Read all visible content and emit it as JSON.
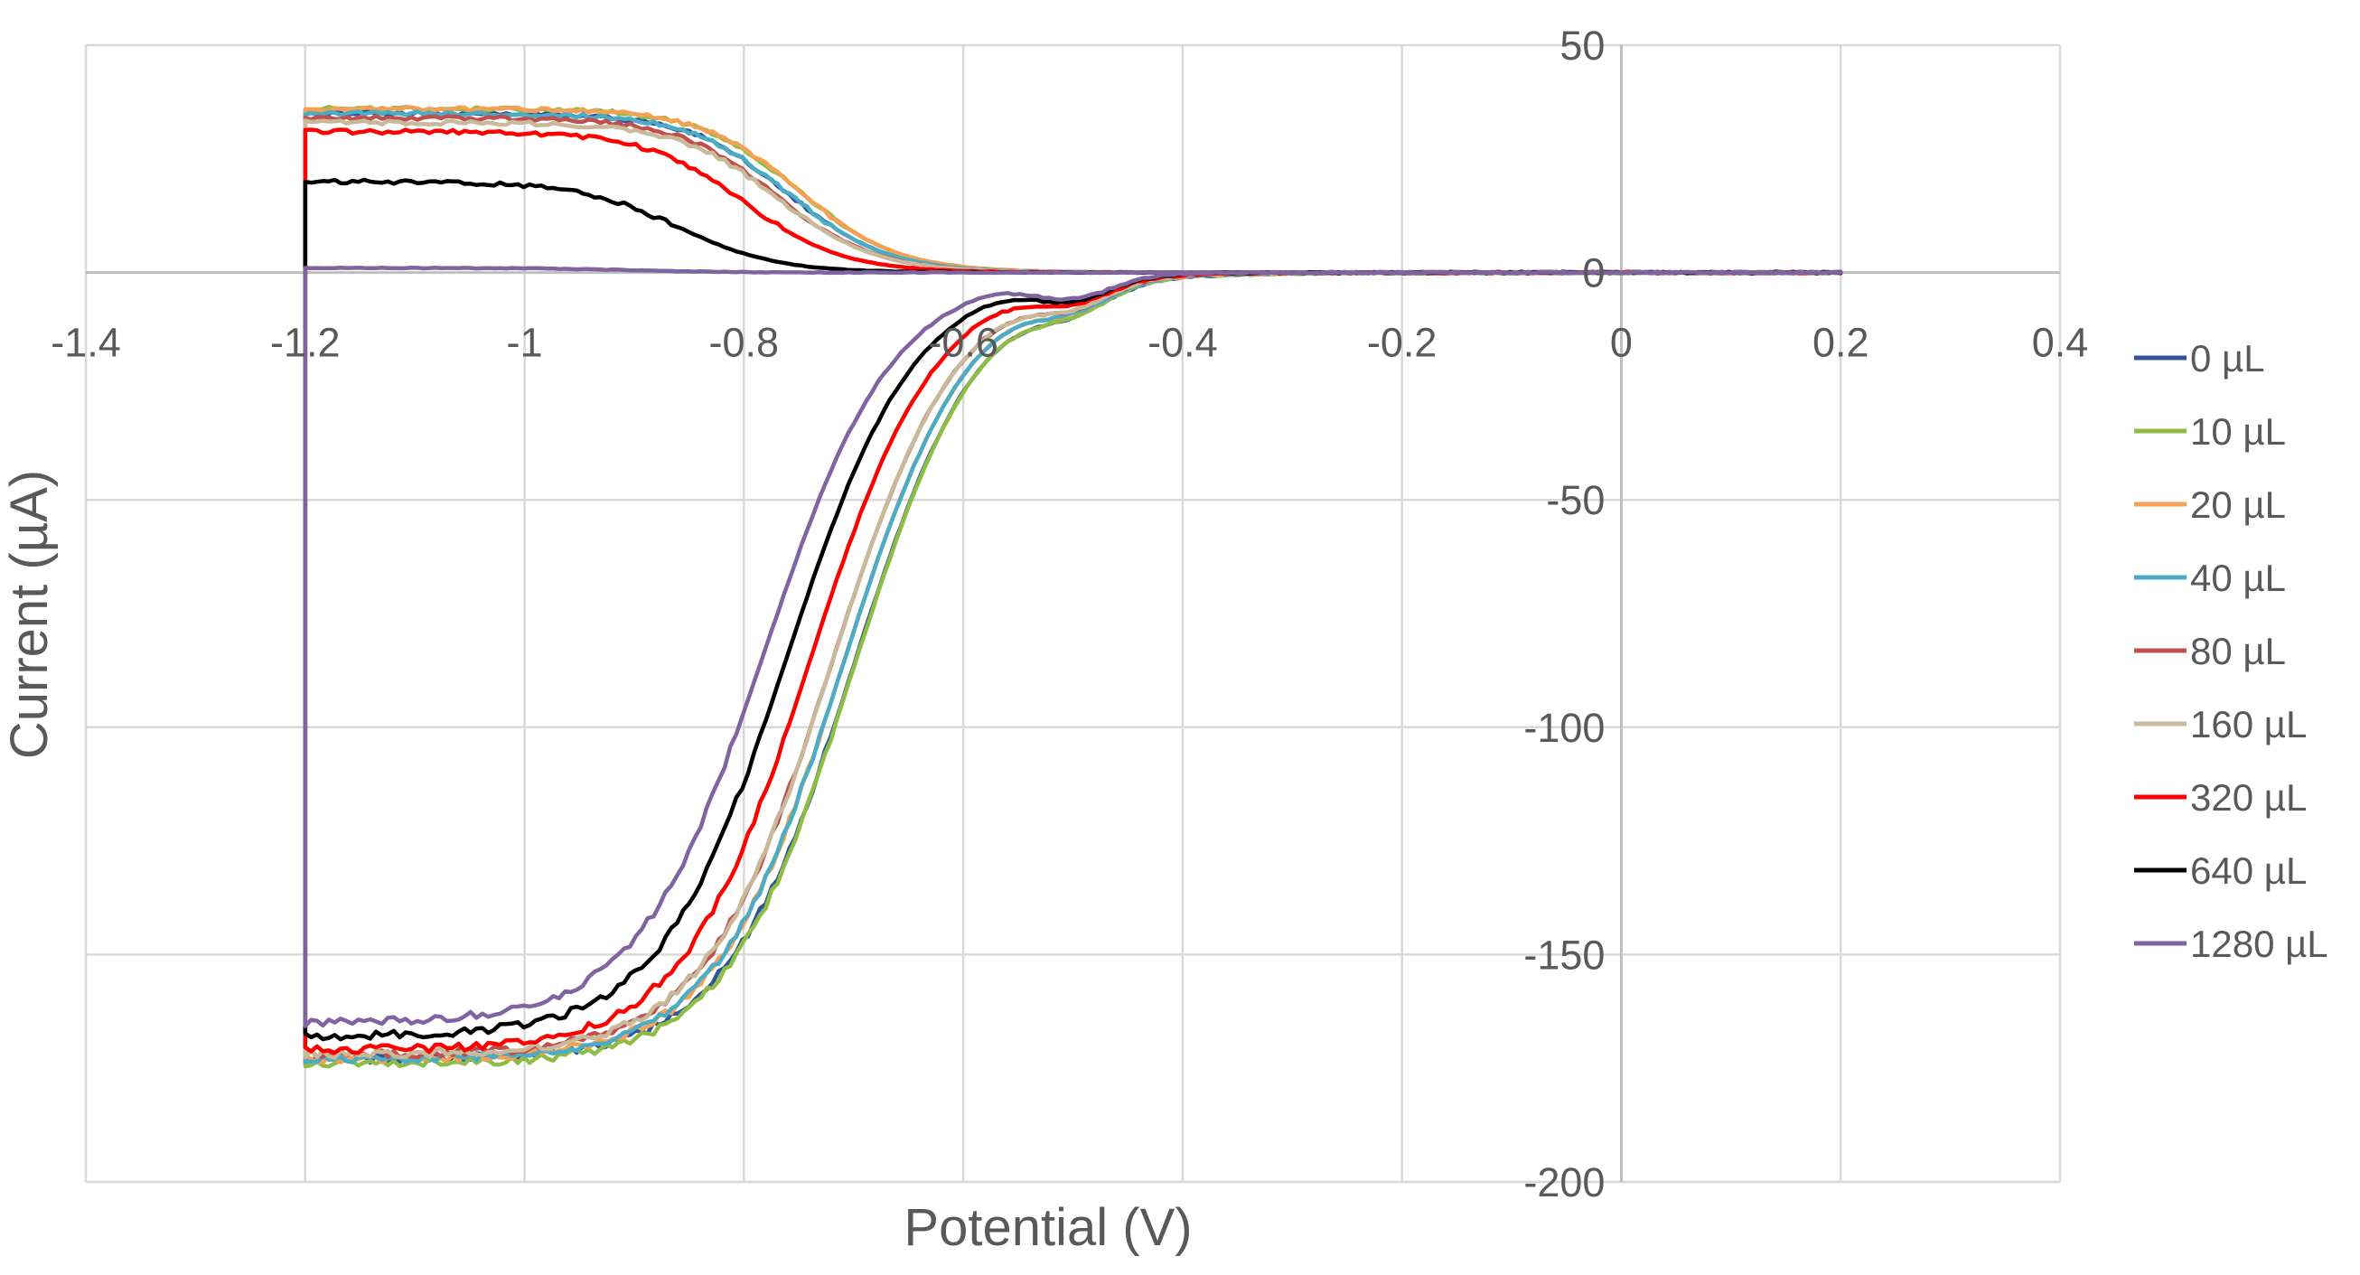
{
  "chart_data": {
    "type": "line",
    "title": "",
    "xlabel": "Potential (V)",
    "ylabel": "Current (µA)",
    "xlim": [
      -1.4,
      0.4
    ],
    "ylim": [
      -200,
      50
    ],
    "xticks": [
      -1.4,
      -1.2,
      -1,
      -0.8,
      -0.6,
      -0.4,
      -0.2,
      0,
      0.2,
      0.4
    ],
    "xtick_labels": [
      "-1.4",
      "-1.2",
      "-1",
      "-0.8",
      "-0.6",
      "-0.4",
      "-0.2",
      "0",
      "0.2",
      "0.4"
    ],
    "yticks": [
      50,
      0,
      -50,
      -100,
      -150,
      -200
    ],
    "ytick_labels": [
      "50",
      "0",
      "-50",
      "-100",
      "-150",
      "-200"
    ],
    "grid": true,
    "legend_position": "right",
    "curve_model": "cyclic voltammogram; each series sweeps forward 0.2 V to -1.2 V (cathodic branch, reaching the cathodic plateau current) and reverse -1.2 V to 0.2 V (anodic branch, reaching the anodic plateau current)",
    "series": [
      {
        "name": "0 µL",
        "color": "#2f5597",
        "cathodic_plateau_uA": -173,
        "cathodic_half_wave_V": -0.7,
        "anodic_plateau_uA": 35,
        "anodic_half_wave_V": -0.76
      },
      {
        "name": "10 µL",
        "color": "#8fbc45",
        "cathodic_plateau_uA": -174,
        "cathodic_half_wave_V": -0.7,
        "anodic_plateau_uA": 36,
        "anodic_half_wave_V": -0.75
      },
      {
        "name": "20 µL",
        "color": "#f4a155",
        "cathodic_plateau_uA": -173,
        "cathodic_half_wave_V": -0.71,
        "anodic_plateau_uA": 36,
        "anodic_half_wave_V": -0.75
      },
      {
        "name": "40 µL",
        "color": "#4bacc6",
        "cathodic_plateau_uA": -173,
        "cathodic_half_wave_V": -0.71,
        "anodic_plateau_uA": 35,
        "anodic_half_wave_V": -0.76
      },
      {
        "name": "80 µL",
        "color": "#c0504d",
        "cathodic_plateau_uA": -172,
        "cathodic_half_wave_V": -0.72,
        "anodic_plateau_uA": 34,
        "anodic_half_wave_V": -0.77
      },
      {
        "name": "160 µL",
        "color": "#c9b99b",
        "cathodic_plateau_uA": -172,
        "cathodic_half_wave_V": -0.72,
        "anodic_plateau_uA": 33,
        "anodic_half_wave_V": -0.77
      },
      {
        "name": "320 µL",
        "color": "#ff0000",
        "cathodic_plateau_uA": -171,
        "cathodic_half_wave_V": -0.74,
        "anodic_plateau_uA": 31,
        "anodic_half_wave_V": -0.8
      },
      {
        "name": "640 µL",
        "color": "#000000",
        "cathodic_plateau_uA": -168,
        "cathodic_half_wave_V": -0.76,
        "anodic_plateau_uA": 20,
        "anodic_half_wave_V": -0.86
      },
      {
        "name": "1280 µL",
        "color": "#8064a2",
        "cathodic_plateau_uA": -165,
        "cathodic_half_wave_V": -0.78,
        "anodic_plateau_uA": 1,
        "anodic_half_wave_V": -0.9
      }
    ]
  }
}
